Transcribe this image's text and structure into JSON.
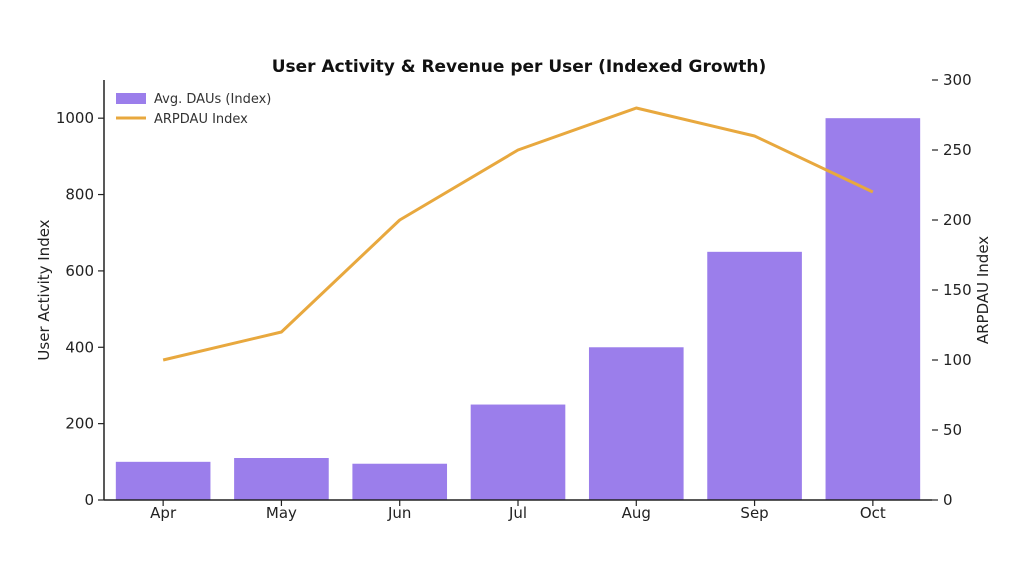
{
  "chart_data": {
    "type": "bar",
    "title": "User Activity & Revenue per User (Indexed Growth)",
    "categories": [
      "Apr",
      "May",
      "Jun",
      "Jul",
      "Aug",
      "Sep",
      "Oct"
    ],
    "series": [
      {
        "name": "Avg. DAUs (Index)",
        "type": "bar",
        "axis": "left",
        "color": "#9b7eeb",
        "values": [
          100,
          110,
          95,
          250,
          400,
          650,
          1000
        ]
      },
      {
        "name": "ARPDAU Index",
        "type": "line",
        "axis": "right",
        "color": "#e8a83e",
        "values": [
          100,
          120,
          200,
          250,
          280,
          260,
          220
        ]
      }
    ],
    "ylabel_left": "User Activity Index",
    "ylabel_right": "ARPDAU Index",
    "ylim_left": [
      0,
      1100
    ],
    "ylim_right": [
      0,
      300
    ],
    "yticks_left": [
      0,
      200,
      400,
      600,
      800,
      1000
    ],
    "yticks_right": [
      0,
      50,
      100,
      150,
      200,
      250,
      300
    ],
    "grid": false,
    "legend_position": "top-left"
  }
}
